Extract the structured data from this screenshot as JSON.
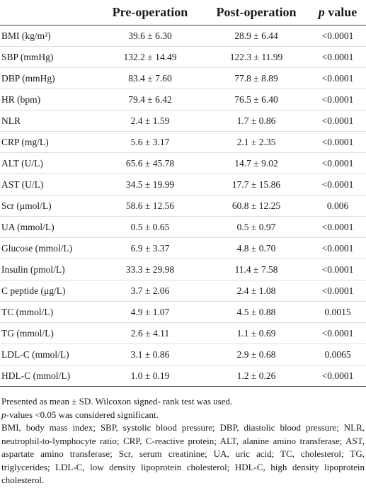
{
  "table": {
    "header": [
      "",
      "Pre-operation",
      "Post-operation",
      {
        "italic": "p",
        "rest": " value"
      }
    ],
    "rows": [
      [
        "BMI (kg/m²)",
        "39.6 ± 6.30",
        "28.9 ± 6.44",
        "<0.0001"
      ],
      [
        "SBP (mmHg)",
        "132.2 ± 14.49",
        "122.3 ± 11.99",
        "<0.0001"
      ],
      [
        "DBP (mmHg)",
        "83.4 ± 7.60",
        "77.8 ± 8.89",
        "<0.0001"
      ],
      [
        "HR (bpm)",
        "79.4 ± 6.42",
        "76.5 ± 6.40",
        "<0.0001"
      ],
      [
        "NLR",
        "2.4 ± 1.59",
        "1.7 ± 0.86",
        "<0.0001"
      ],
      [
        "CRP (mg/L)",
        "5.6 ± 3.17",
        "2.1 ± 2.35",
        "<0.0001"
      ],
      [
        "ALT (U/L)",
        "65.6 ± 45.78",
        "14.7 ± 9.02",
        "<0.0001"
      ],
      [
        "AST (U/L)",
        "34.5 ± 19.99",
        "17.7 ± 15.86",
        "<0.0001"
      ],
      [
        "Scr (μmol/L)",
        "58.6 ± 12.56",
        "60.8 ± 12.25",
        "0.006"
      ],
      [
        "UA (mmol/L)",
        "0.5 ± 0.65",
        "0.5 ± 0.97",
        "<0.0001"
      ],
      [
        "Glucose (mmol/L)",
        "6.9 ± 3.37",
        "4.8 ± 0.70",
        "<0.0001"
      ],
      [
        "Insulin (pmol/L)",
        "33.3 ± 29.98",
        "11.4 ± 7.58",
        "<0.0001"
      ],
      [
        "C peptide (μg/L)",
        "3.7 ± 2.06",
        "2.4 ± 1.08",
        "<0.0001"
      ],
      [
        "TC (mmol/L)",
        "4.9 ± 1.07",
        "4.5 ± 0.88",
        "0.0015"
      ],
      [
        "TG (mmol/L)",
        "2.6 ± 4.11",
        "1.1 ± 0.69",
        "<0.0001"
      ],
      [
        "LDL-C (mmol/L)",
        "3.1 ± 0.86",
        "2.9 ± 0.68",
        "0.0065"
      ],
      [
        "HDL-C (mmol/L)",
        "1.0 ± 0.19",
        "1.2 ± 0.26",
        "<0.0001"
      ]
    ],
    "notes": [
      {
        "text": "Presented as mean ± SD. Wilcoxon signed- rank test was used."
      },
      {
        "italic": "p",
        "rest": "-values <0.05 was considered significant."
      },
      {
        "text": "BMI, body mass index; SBP, systolic blood pressure; DBP, diastolic blood pressure; NLR, neutrophil-to-lymphocyte ratio; CRP, C-reactive protein; ALT, alanine amino transferase; AST, aspartate amino transferase; Scr, serum creatinine; UA, uric acid; TC, cholesterol; TG, triglycerides; LDL-C, low density lipoprotein cholesterol; HDL-C, high density lipoprotein cholesterol."
      }
    ]
  }
}
